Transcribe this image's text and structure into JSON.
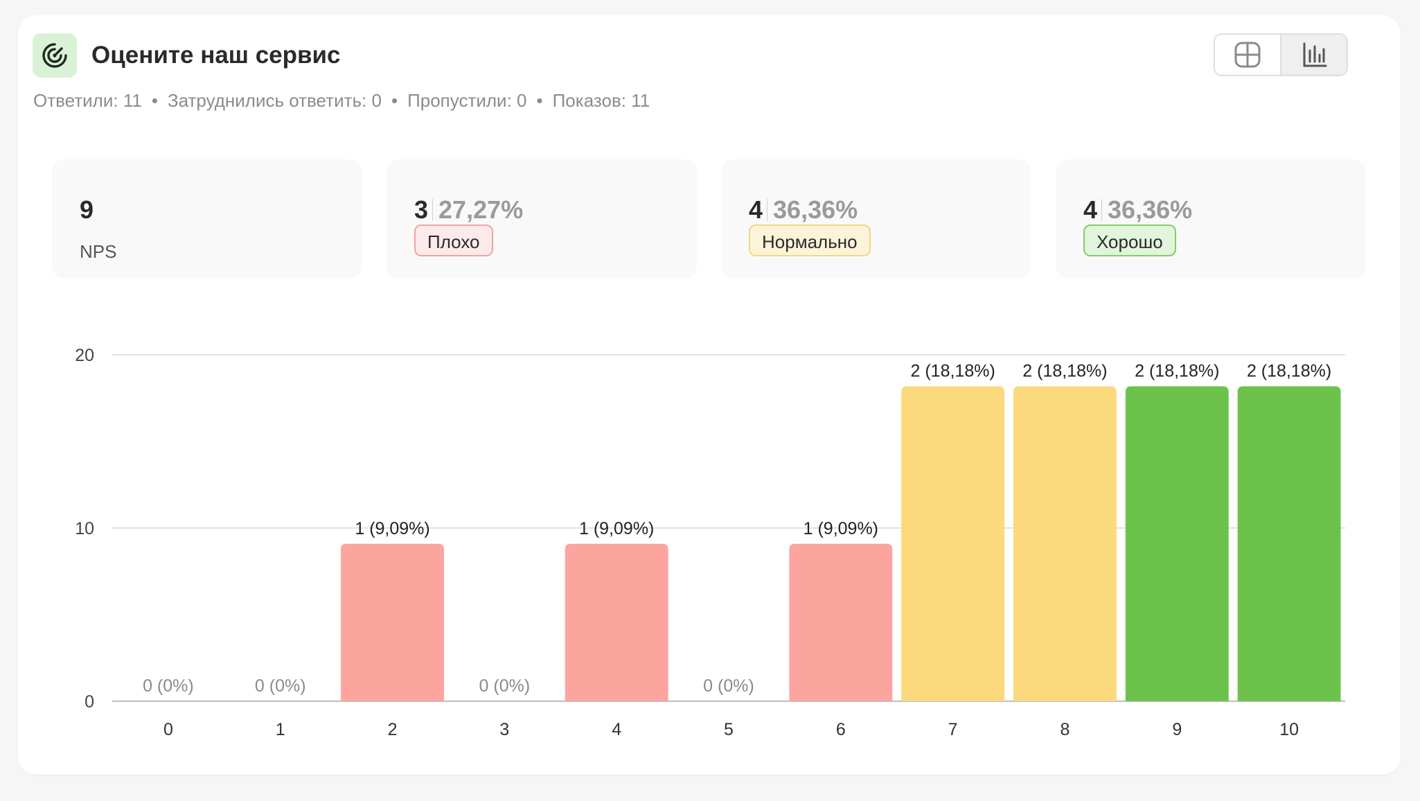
{
  "question": {
    "title": "Оцените наш сервис",
    "icon": "gauge-icon"
  },
  "stats": {
    "answered": "Ответили: 11",
    "hard_to_answer": "Затруднились ответить: 0",
    "skipped": "Пропустили: 0",
    "shows": "Показов: 11"
  },
  "view_toggle": {
    "table_icon": "table-icon",
    "chart_icon": "bar-chart-icon",
    "active": "chart"
  },
  "kpis": {
    "nps": {
      "value": "9",
      "label": "NPS"
    },
    "bad": {
      "count": "3",
      "percent": "27,27%",
      "label": "Плохо"
    },
    "normal": {
      "count": "4",
      "percent": "36,36%",
      "label": "Нормально"
    },
    "good": {
      "count": "4",
      "percent": "36,36%",
      "label": "Хорошо"
    }
  },
  "colors": {
    "bad": "#fca59f",
    "normal": "#fbd97c",
    "good": "#6cc24a",
    "accent_green_bg": "#d9f2d6"
  },
  "chart_data": {
    "type": "bar",
    "categories": [
      "0",
      "1",
      "2",
      "3",
      "4",
      "5",
      "6",
      "7",
      "8",
      "9",
      "10"
    ],
    "values": [
      0,
      0,
      9.09,
      0,
      9.09,
      0,
      9.09,
      18.18,
      18.18,
      18.18,
      18.18
    ],
    "data_labels": [
      "0 (0%)",
      "0 (0%)",
      "1 (9,09%)",
      "0 (0%)",
      "1 (9,09%)",
      "0 (0%)",
      "1 (9,09%)",
      "2 (18,18%)",
      "2 (18,18%)",
      "2 (18,18%)",
      "2 (18,18%)"
    ],
    "groups": [
      "bad",
      "bad",
      "bad",
      "bad",
      "bad",
      "bad",
      "bad",
      "normal",
      "normal",
      "good",
      "good"
    ],
    "yticks": [
      "0",
      "10",
      "20"
    ],
    "ylim": [
      0,
      20
    ],
    "grid": true
  }
}
